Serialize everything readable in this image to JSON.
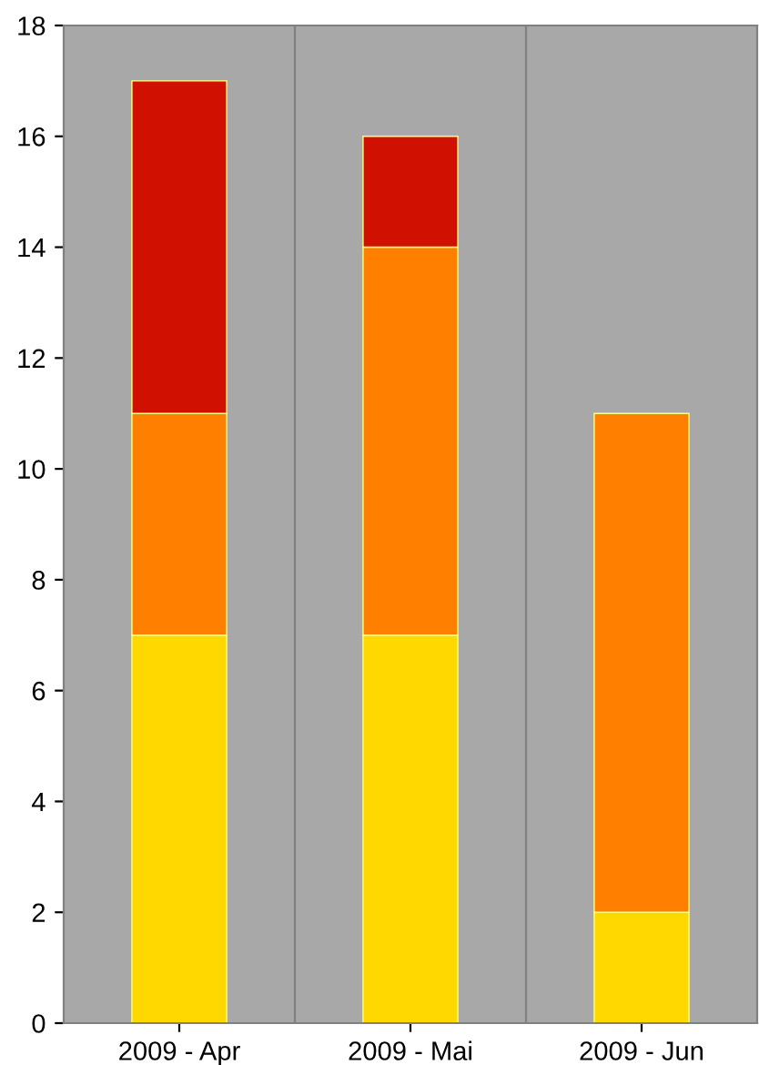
{
  "chart_data": {
    "type": "bar",
    "stacked": true,
    "categories": [
      "2009 - Apr",
      "2009 - Mai",
      "2009 - Jun"
    ],
    "series": [
      {
        "color": "#ffd800",
        "values": [
          7,
          7,
          2
        ]
      },
      {
        "color": "#ff8000",
        "values": [
          4,
          7,
          9
        ]
      },
      {
        "color": "#d01000",
        "values": [
          6,
          2,
          null
        ]
      }
    ],
    "ylim": [
      0,
      18
    ],
    "yticks": [
      0,
      2,
      4,
      6,
      8,
      10,
      12,
      14,
      16,
      18
    ],
    "grid": "x"
  }
}
